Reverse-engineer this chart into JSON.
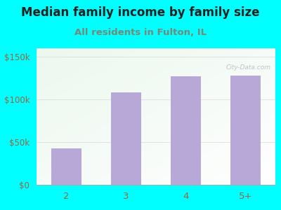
{
  "title": "Median family income by family size",
  "subtitle": "All residents in Fulton, IL",
  "categories": [
    "2",
    "3",
    "4",
    "5+"
  ],
  "values": [
    43000,
    108000,
    127000,
    128000
  ],
  "bar_color": "#b8a8d8",
  "bg_outer": "#00ffff",
  "bg_plot_tl": "#d8ede0",
  "bg_plot_tr": "#f0f8f0",
  "bg_plot_bl": "#ffffff",
  "bg_plot_br": "#ffffff",
  "title_color": "#222222",
  "subtitle_color": "#778877",
  "tick_label_color": "#996644",
  "ytick_labels": [
    "$0",
    "$50k",
    "$100k",
    "$150k"
  ],
  "ytick_values": [
    0,
    50000,
    100000,
    150000
  ],
  "ylim": [
    0,
    160000
  ],
  "title_fontsize": 12,
  "subtitle_fontsize": 9.5,
  "watermark": "City-Data.com",
  "grid_color": "#dddddd"
}
